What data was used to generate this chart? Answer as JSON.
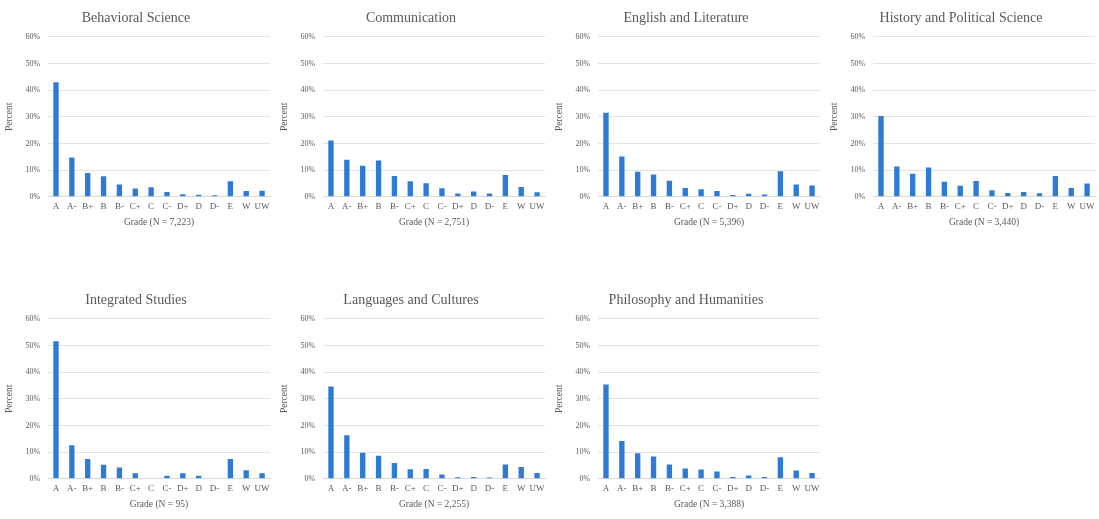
{
  "chart_data": [
    {
      "type": "bar",
      "title": "Behavioral Science",
      "xlabel": "Grade (N = 7,223)",
      "ylabel": "Percent",
      "categories": [
        "A",
        "A-",
        "B+",
        "B",
        "B-",
        "C+",
        "C",
        "C-",
        "D+",
        "D",
        "D-",
        "E",
        "W",
        "UW"
      ],
      "color": "#2e7bd6",
      "values": [
        43.0,
        14.7,
        8.9,
        7.7,
        4.6,
        3.1,
        3.6,
        1.8,
        1.0,
        0.8,
        0.6,
        5.8,
        2.2,
        2.3
      ],
      "ylim": [
        0,
        60
      ],
      "yticks": [
        {
          "value": 0,
          "label": "0%"
        },
        {
          "value": 10,
          "label": "10%"
        },
        {
          "value": 20,
          "label": "20%"
        },
        {
          "value": 30,
          "label": "30%"
        },
        {
          "value": 40,
          "label": "40%"
        },
        {
          "value": 50,
          "label": "50%"
        },
        {
          "value": 60,
          "label": "60%"
        }
      ],
      "grid": "y",
      "legend": false
    },
    {
      "type": "bar",
      "title": "Communication",
      "xlabel": "Grade (N = 2,751)",
      "ylabel": "Percent",
      "categories": [
        "A",
        "A-",
        "B+",
        "B",
        "B-",
        "C+",
        "C",
        "C-",
        "D+",
        "D",
        "D-",
        "E",
        "W",
        "UW"
      ],
      "color": "#2e7bd6",
      "values": [
        21.1,
        13.9,
        11.6,
        13.6,
        7.8,
        5.8,
        5.1,
        3.2,
        1.2,
        2.0,
        1.2,
        8.2,
        3.7,
        1.7
      ],
      "ylim": [
        0,
        60
      ],
      "yticks": [
        {
          "value": 0,
          "label": "0%"
        },
        {
          "value": 10,
          "label": "10%"
        },
        {
          "value": 20,
          "label": "20%"
        },
        {
          "value": 30,
          "label": "30%"
        },
        {
          "value": 40,
          "label": "40%"
        },
        {
          "value": 50,
          "label": "50%"
        },
        {
          "value": 60,
          "label": "60%"
        }
      ],
      "grid": "y",
      "legend": false
    },
    {
      "type": "bar",
      "title": "English and Literature",
      "xlabel": "Grade (N = 5,396)",
      "ylabel": "Percent",
      "categories": [
        "A",
        "A-",
        "B+",
        "B",
        "B-",
        "C+",
        "C",
        "C-",
        "D+",
        "D",
        "D-",
        "E",
        "W",
        "UW"
      ],
      "color": "#2e7bd6",
      "values": [
        31.5,
        15.1,
        9.4,
        8.4,
        6.0,
        3.3,
        2.8,
        2.2,
        0.7,
        1.1,
        0.9,
        9.6,
        4.6,
        4.2
      ],
      "ylim": [
        0,
        60
      ],
      "yticks": [
        {
          "value": 0,
          "label": "0%"
        },
        {
          "value": 10,
          "label": "10%"
        },
        {
          "value": 20,
          "label": "20%"
        },
        {
          "value": 30,
          "label": "30%"
        },
        {
          "value": 40,
          "label": "40%"
        },
        {
          "value": 50,
          "label": "50%"
        },
        {
          "value": 60,
          "label": "60%"
        }
      ],
      "grid": "y",
      "legend": false
    },
    {
      "type": "bar",
      "title": "History and Political Science",
      "xlabel": "Grade (N = 3,440)",
      "ylabel": "Percent",
      "categories": [
        "A",
        "A-",
        "B+",
        "B",
        "B-",
        "C+",
        "C",
        "C-",
        "D+",
        "D",
        "D-",
        "E",
        "W",
        "UW"
      ],
      "color": "#2e7bd6",
      "values": [
        30.3,
        11.4,
        8.6,
        11.0,
        5.6,
        4.1,
        5.9,
        2.5,
        1.4,
        1.8,
        1.3,
        7.8,
        3.3,
        5.0
      ],
      "ylim": [
        0,
        60
      ],
      "yticks": [
        {
          "value": 0,
          "label": "0%"
        },
        {
          "value": 10,
          "label": "10%"
        },
        {
          "value": 20,
          "label": "20%"
        },
        {
          "value": 30,
          "label": "30%"
        },
        {
          "value": 40,
          "label": "40%"
        },
        {
          "value": 50,
          "label": "50%"
        },
        {
          "value": 60,
          "label": "60%"
        }
      ],
      "grid": "y",
      "legend": false
    },
    {
      "type": "bar",
      "title": "Integrated Studies",
      "xlabel": "Grade (N = 95)",
      "ylabel": "Percent",
      "categories": [
        "A",
        "A-",
        "B+",
        "B",
        "B-",
        "C+",
        "C",
        "C-",
        "D+",
        "D",
        "D-",
        "E",
        "W",
        "UW"
      ],
      "color": "#2e7bd6",
      "values": [
        51.6,
        12.6,
        7.4,
        5.3,
        4.2,
        2.1,
        0,
        1.1,
        2.1,
        1.1,
        0,
        7.4,
        3.2,
        2.1
      ],
      "ylim": [
        0,
        60
      ],
      "yticks": [
        {
          "value": 0,
          "label": "0%"
        },
        {
          "value": 10,
          "label": "10%"
        },
        {
          "value": 20,
          "label": "20%"
        },
        {
          "value": 30,
          "label": "30%"
        },
        {
          "value": 40,
          "label": "40%"
        },
        {
          "value": 50,
          "label": "50%"
        },
        {
          "value": 60,
          "label": "60%"
        }
      ],
      "grid": "y",
      "legend": false
    },
    {
      "type": "bar",
      "title": "Languages and Cultures",
      "xlabel": "Grade (N = 2,255)",
      "ylabel": "Percent",
      "categories": [
        "A",
        "A-",
        "B+",
        "B",
        "B-",
        "C+",
        "C",
        "C-",
        "D+",
        "D",
        "D-",
        "E",
        "W",
        "UW"
      ],
      "color": "#2e7bd6",
      "values": [
        34.6,
        16.3,
        9.8,
        8.6,
        5.9,
        3.6,
        3.7,
        1.6,
        0.6,
        0.7,
        0.5,
        5.4,
        4.4,
        2.2
      ],
      "ylim": [
        0,
        60
      ],
      "yticks": [
        {
          "value": 0,
          "label": "0%"
        },
        {
          "value": 10,
          "label": "10%"
        },
        {
          "value": 20,
          "label": "20%"
        },
        {
          "value": 30,
          "label": "30%"
        },
        {
          "value": 40,
          "label": "40%"
        },
        {
          "value": 50,
          "label": "50%"
        },
        {
          "value": 60,
          "label": "60%"
        }
      ],
      "grid": "y",
      "legend": false
    },
    {
      "type": "bar",
      "title": "Philosophy and Humanities",
      "xlabel": "Grade (N = 3,388)",
      "ylabel": "Percent",
      "categories": [
        "A",
        "A-",
        "B+",
        "B",
        "B-",
        "C+",
        "C",
        "C-",
        "D+",
        "D",
        "D-",
        "E",
        "W",
        "UW"
      ],
      "color": "#2e7bd6",
      "values": [
        35.4,
        14.2,
        9.6,
        8.4,
        5.4,
        3.9,
        3.5,
        2.7,
        0.7,
        1.2,
        0.7,
        8.1,
        3.1,
        2.2
      ],
      "ylim": [
        0,
        60
      ],
      "yticks": [
        {
          "value": 0,
          "label": "0%"
        },
        {
          "value": 10,
          "label": "10%"
        },
        {
          "value": 20,
          "label": "20%"
        },
        {
          "value": 30,
          "label": "30%"
        },
        {
          "value": 40,
          "label": "40%"
        },
        {
          "value": 50,
          "label": "50%"
        },
        {
          "value": 60,
          "label": "60%"
        }
      ],
      "grid": "y",
      "legend": false
    }
  ]
}
